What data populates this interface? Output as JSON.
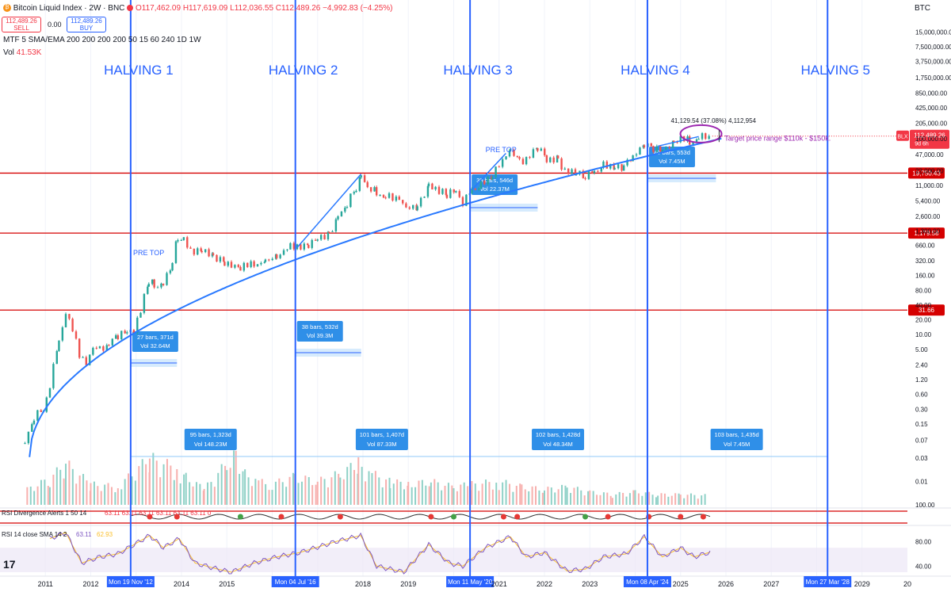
{
  "header": {
    "title": "Bitcoin Liquid Index · 2W · BNC",
    "ohlc": "O117,462.09 H117,619.09 L112,036.55 C112,489.26 −4,992.83 (−4.25%)",
    "sell_price": "112,489.26",
    "sell_label": "SELL",
    "buy_price": "112,489.26",
    "buy_label": "BUY",
    "spread": "0.00",
    "indicator_ma": "MTF 5 SMA/EMA 200 200 200 200 50 15 60 240 1D 1W",
    "vol_label": "Vol",
    "vol_value": "41.53K",
    "currency": "BTC",
    "logo": "17"
  },
  "colors": {
    "halving_line": "#2962ff",
    "level_line": "#d50000",
    "arc": "#2979ff",
    "candle_up": "#26a69a",
    "candle_down": "#ef5350",
    "vol_up": "#8fd1c7",
    "vol_down": "#f7b0ae",
    "rsi": "#7e57c2",
    "rsi_sma": "#fbc02d",
    "target_ellipse": "#9c27b0",
    "measure_box": "#2f8fe8"
  },
  "chart_data": {
    "type": "candlestick",
    "title": "Bitcoin Liquid Index · 2W · BNC",
    "yscale": "log",
    "ylim": [
      0.003,
      40000000
    ],
    "xlim": [
      2010.0,
      2030.0
    ],
    "y_ticks": [
      "15,000,000.00",
      "7,500,000.00",
      "3,750,000.00",
      "1,750,000.00",
      "850,000.00",
      "425,000.00",
      "205,000.00",
      "100,000.00",
      "47,000.00",
      "22,000.00",
      "11,000.00",
      "5,400.00",
      "2,600.00",
      "1,300.00",
      "660.00",
      "320.00",
      "160.00",
      "80.00",
      "40.00",
      "20.00",
      "10.00",
      "5.00",
      "2.40",
      "1.20",
      "0.60",
      "0.30",
      "0.15",
      "0.07",
      "0.03",
      "0.01"
    ],
    "x_ticks": [
      "2011",
      "2012",
      "2014",
      "2015",
      "2018",
      "2019",
      "2021",
      "2022",
      "2023",
      "2025",
      "2026",
      "2027",
      "2029",
      "20"
    ],
    "price_series": {
      "name": "BLX",
      "points": [
        [
          2010.55,
          0.06
        ],
        [
          2010.75,
          0.2
        ],
        [
          2010.95,
          0.3
        ],
        [
          2011.1,
          0.9
        ],
        [
          2011.3,
          8
        ],
        [
          2011.45,
          28
        ],
        [
          2011.6,
          12
        ],
        [
          2011.75,
          4
        ],
        [
          2011.9,
          2.8
        ],
        [
          2012.05,
          5
        ],
        [
          2012.2,
          5
        ],
        [
          2012.4,
          6
        ],
        [
          2012.6,
          10
        ],
        [
          2012.8,
          12
        ],
        [
          2012.95,
          13
        ],
        [
          2013.1,
          30
        ],
        [
          2013.28,
          120
        ],
        [
          2013.4,
          100
        ],
        [
          2013.6,
          110
        ],
        [
          2013.8,
          300
        ],
        [
          2013.92,
          1000
        ],
        [
          2014.05,
          800
        ],
        [
          2014.2,
          500
        ],
        [
          2014.45,
          600
        ],
        [
          2014.7,
          400
        ],
        [
          2014.95,
          300
        ],
        [
          2015.1,
          230
        ],
        [
          2015.3,
          240
        ],
        [
          2015.6,
          260
        ],
        [
          2015.85,
          350
        ],
        [
          2016.1,
          410
        ],
        [
          2016.4,
          600
        ],
        [
          2016.55,
          650
        ],
        [
          2016.8,
          730
        ],
        [
          2017.0,
          950
        ],
        [
          2017.25,
          1200
        ],
        [
          2017.45,
          2500
        ],
        [
          2017.65,
          4500
        ],
        [
          2017.85,
          10000
        ],
        [
          2017.96,
          19000
        ],
        [
          2018.1,
          10000
        ],
        [
          2018.3,
          8000
        ],
        [
          2018.5,
          6500
        ],
        [
          2018.8,
          6300
        ],
        [
          2018.95,
          3500
        ],
        [
          2019.2,
          4000
        ],
        [
          2019.45,
          11000
        ],
        [
          2019.6,
          10000
        ],
        [
          2019.85,
          7500
        ],
        [
          2020.05,
          9000
        ],
        [
          2020.2,
          5000
        ],
        [
          2020.4,
          9500
        ],
        [
          2020.6,
          11000
        ],
        [
          2020.85,
          18000
        ],
        [
          2021.0,
          32000
        ],
        [
          2021.25,
          58000
        ],
        [
          2021.45,
          35000
        ],
        [
          2021.6,
          40000
        ],
        [
          2021.85,
          64000
        ],
        [
          2022.05,
          40000
        ],
        [
          2022.3,
          38000
        ],
        [
          2022.45,
          20000
        ],
        [
          2022.7,
          19500
        ],
        [
          2022.9,
          16500
        ],
        [
          2023.1,
          22000
        ],
        [
          2023.3,
          28000
        ],
        [
          2023.55,
          29000
        ],
        [
          2023.75,
          27000
        ],
        [
          2023.95,
          42000
        ],
        [
          2024.2,
          70000
        ],
        [
          2024.4,
          66000
        ],
        [
          2024.6,
          60000
        ],
        [
          2024.85,
          90000
        ],
        [
          2025.0,
          105000
        ],
        [
          2025.2,
          85000
        ],
        [
          2025.4,
          105000
        ],
        [
          2025.55,
          118000
        ],
        [
          2025.67,
          112489.26
        ]
      ]
    },
    "volume_series": {
      "name": "Vol",
      "points": [
        [
          2010.6,
          0.3
        ],
        [
          2011.1,
          0.5
        ],
        [
          2011.45,
          0.8
        ],
        [
          2012.0,
          0.4
        ],
        [
          2012.6,
          0.35
        ],
        [
          2013.3,
          0.9
        ],
        [
          2013.9,
          0.7
        ],
        [
          2014.1,
          0.55
        ],
        [
          2014.5,
          0.3
        ],
        [
          2015.0,
          0.8
        ],
        [
          2015.2,
          1.0
        ],
        [
          2015.4,
          0.6
        ],
        [
          2015.7,
          0.45
        ],
        [
          2016.0,
          0.4
        ],
        [
          2016.5,
          0.55
        ],
        [
          2017.0,
          0.45
        ],
        [
          2017.5,
          0.6
        ],
        [
          2017.9,
          0.8
        ],
        [
          2018.2,
          0.6
        ],
        [
          2018.6,
          0.45
        ],
        [
          2019.0,
          0.4
        ],
        [
          2019.5,
          0.45
        ],
        [
          2020.0,
          0.35
        ],
        [
          2020.4,
          0.4
        ],
        [
          2021.0,
          0.45
        ],
        [
          2021.5,
          0.35
        ],
        [
          2022.0,
          0.3
        ],
        [
          2022.5,
          0.35
        ],
        [
          2023.0,
          0.25
        ],
        [
          2023.5,
          0.2
        ],
        [
          2024.0,
          0.25
        ],
        [
          2024.5,
          0.2
        ],
        [
          2025.0,
          0.2
        ],
        [
          2025.6,
          0.18
        ]
      ]
    },
    "rsi_series": {
      "name": "RSI 14 close SMA 14 2",
      "value": "63.11",
      "sma_value": "62.93",
      "ylim": [
        30,
        100
      ],
      "y_ticks": [
        "100.00",
        "80.00",
        "40.00"
      ],
      "points": [
        [
          2011.1,
          85
        ],
        [
          2011.45,
          95
        ],
        [
          2011.8,
          45
        ],
        [
          2012.2,
          55
        ],
        [
          2012.6,
          60
        ],
        [
          2013.3,
          90
        ],
        [
          2013.6,
          70
        ],
        [
          2013.95,
          85
        ],
        [
          2014.3,
          45
        ],
        [
          2014.8,
          35
        ],
        [
          2015.1,
          30
        ],
        [
          2015.6,
          45
        ],
        [
          2016.1,
          55
        ],
        [
          2016.6,
          62
        ],
        [
          2017.4,
          80
        ],
        [
          2017.95,
          90
        ],
        [
          2018.3,
          40
        ],
        [
          2018.9,
          30
        ],
        [
          2019.45,
          75
        ],
        [
          2019.9,
          45
        ],
        [
          2020.2,
          40
        ],
        [
          2020.7,
          70
        ],
        [
          2021.25,
          88
        ],
        [
          2021.6,
          55
        ],
        [
          2022.0,
          62
        ],
        [
          2022.5,
          32
        ],
        [
          2022.9,
          35
        ],
        [
          2023.3,
          55
        ],
        [
          2023.8,
          60
        ],
        [
          2024.2,
          88
        ],
        [
          2024.6,
          55
        ],
        [
          2025.0,
          70
        ],
        [
          2025.3,
          55
        ],
        [
          2025.67,
          63.11
        ]
      ]
    },
    "rsi_divergence": {
      "label": "RSI Divergence Alerts 1 50 14",
      "values": "63.11  63.11  63.11  63.11  63.11  63.11  0"
    },
    "halvings": [
      {
        "label": "HALVING 1",
        "x": 2012.88,
        "date": "Mon 19 Nov '12"
      },
      {
        "label": "HALVING 2",
        "x": 2016.51,
        "date": "Mon 04 Jul '16"
      },
      {
        "label": "HALVING 3",
        "x": 2020.36,
        "date": "Mon 11 May '20"
      },
      {
        "label": "HALVING 4",
        "x": 2024.27,
        "date": "Mon 08 Apr '24"
      },
      {
        "label": "HALVING 5",
        "x": 2028.24,
        "date": "Mon 27 Mar '28"
      }
    ],
    "horizontal_levels": [
      {
        "value": 19750.43,
        "label": "19,750.43"
      },
      {
        "value": 1179.58,
        "label": "1,179.58"
      },
      {
        "value": 31.66,
        "label": "31.66"
      }
    ],
    "last_price": {
      "label": "112,489.26",
      "countdown": "9d 6h",
      "symbol": "BLX"
    },
    "annotations": {
      "pre_top_1": "PRE TOP",
      "pre_top_2": "PRE TOP",
      "target_range": "Target price range $110k - $150k.",
      "target_measure": "41,129.54 (37.08%) 4,112,954"
    },
    "measures": [
      {
        "line1": "27 bars, 371d",
        "line2": "Vol 32.64M",
        "x0": 2012.88,
        "x1": 2013.9
      },
      {
        "line1": "38 bars, 532d",
        "line2": "Vol 39.3M",
        "x0": 2016.51,
        "x1": 2017.96
      },
      {
        "line1": "39 bars, 546d",
        "line2": "Vol 22.37M",
        "x0": 2020.36,
        "x1": 2021.85
      },
      {
        "line1": "40 bars, 553d",
        "line2": "Vol 7.45M",
        "x0": 2024.27,
        "x1": 2025.78
      }
    ],
    "cycle_measures": [
      {
        "line1": "95 bars, 1,323d",
        "line2": "Vol 148.23M",
        "x0": 2012.88,
        "x1": 2016.51
      },
      {
        "line1": "101 bars, 1,407d",
        "line2": "Vol 87.33M",
        "x0": 2016.51,
        "x1": 2020.36
      },
      {
        "line1": "102 bars, 1,428d",
        "line2": "Vol 48.34M",
        "x0": 2020.36,
        "x1": 2024.27
      },
      {
        "line1": "103 bars, 1,435d",
        "line2": "Vol 7.45M",
        "x0": 2024.27,
        "x1": 2028.24
      }
    ]
  }
}
